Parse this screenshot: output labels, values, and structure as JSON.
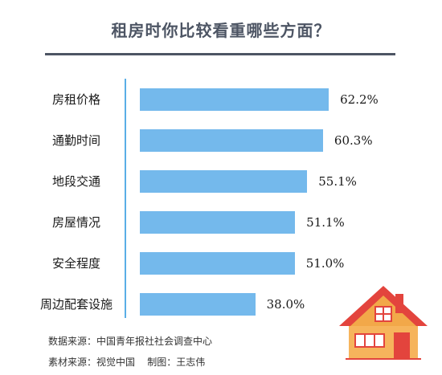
{
  "chart_data": {
    "type": "bar",
    "orientation": "horizontal",
    "title": "租房时你比较看重哪些方面？",
    "categories": [
      "房租价格",
      "通勤时间",
      "地段交通",
      "房屋情况",
      "安全程度",
      "周边配套设施"
    ],
    "values": [
      62.2,
      60.3,
      55.1,
      51.1,
      51.0,
      38.0
    ],
    "value_labels": [
      "62.2%",
      "60.3%",
      "55.1%",
      "51.1%",
      "51.0%",
      "38.0%"
    ],
    "unit": "%",
    "xlim": [
      0,
      100
    ],
    "bar_color": "#74b9ec",
    "grid": false,
    "legend": "none"
  },
  "footer": {
    "line1": "数据来源：中国青年报社社会调查中心",
    "line2": "素材来源：视觉中国    制图：王志伟"
  },
  "colors": {
    "title": "#4d5564",
    "axis": "#5aaee6",
    "bar": "#74b9ec"
  },
  "decoration": {
    "icon": "house-icon"
  }
}
